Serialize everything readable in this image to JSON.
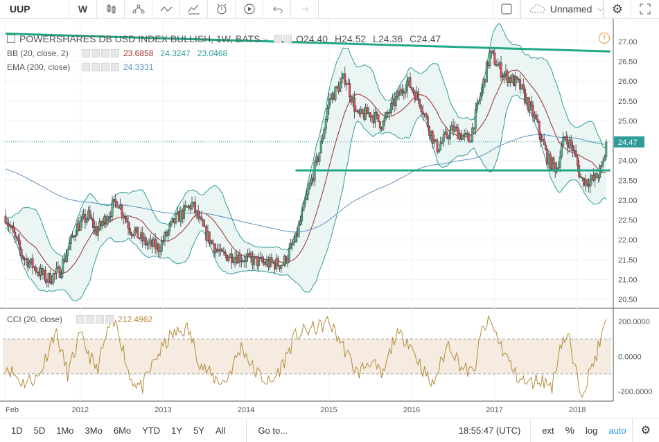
{
  "toolbar": {
    "symbol": "UUP",
    "interval": "W",
    "layout_name": "Unnamed",
    "icons": [
      "bar-style-icon",
      "indicators-icon",
      "compare-icon",
      "templates-icon",
      "alert-icon",
      "replay-icon",
      "undo-icon",
      "redo-icon",
      "checkbox-icon",
      "cloud-icon",
      "settings-icon",
      "fullscreen-icon"
    ]
  },
  "legend": {
    "title": "POWERSHARES DB USD INDEX BULLISH, 1W, BATS",
    "ohlc": {
      "o": "O24.40",
      "h": "H24.52",
      "l": "L24.36",
      "c": "C24.47"
    },
    "bb": {
      "label": "BB (20, close, 2)",
      "v1": "23.6858",
      "v2": "24.3247",
      "v3": "23.0468"
    },
    "ema": {
      "label": "EMA (200, close)",
      "v1": "24.3331"
    },
    "cci": {
      "label": "CCI (20, close)",
      "v1": "212.4962"
    }
  },
  "colors": {
    "up": "#53b987",
    "down": "#eb4d5c",
    "bb": "#2e9c98",
    "ema": "#5d8fbf",
    "sma": "#9c2b2b",
    "cci": "#b38b3a",
    "trend": "#1ea886",
    "band_fill": "#eaf5f4",
    "cci_band": "#f5ebe0"
  },
  "chart_data": {
    "type": "candlestick",
    "price_axis": {
      "min": 20.5,
      "max": 27.0,
      "ticks": [
        "27.00",
        "26.50",
        "26.00",
        "25.50",
        "25.00",
        "24.50",
        "24.00",
        "23.50",
        "23.00",
        "22.50",
        "22.00",
        "21.50",
        "21.00",
        "20.50"
      ],
      "last": "24.47"
    },
    "cci_axis": {
      "ticks": [
        "200.0000",
        "0.0000",
        "-200.0000"
      ],
      "band": [
        -100,
        100
      ]
    },
    "time_axis": {
      "start": 2011.1,
      "end": 2018.36,
      "ticks": [
        {
          "t": 2011.1,
          "label": "Feb"
        },
        {
          "t": 2012,
          "label": "2012"
        },
        {
          "t": 2013,
          "label": "2013"
        },
        {
          "t": 2014,
          "label": "2014"
        },
        {
          "t": 2015,
          "label": "2015"
        },
        {
          "t": 2016,
          "label": "2016"
        },
        {
          "t": 2017,
          "label": "2017"
        },
        {
          "t": 2018,
          "label": "2018"
        }
      ]
    },
    "close_keypoints": [
      [
        2011.1,
        22.6
      ],
      [
        2011.3,
        21.6
      ],
      [
        2011.45,
        21.3
      ],
      [
        2011.6,
        21.0
      ],
      [
        2011.75,
        21.2
      ],
      [
        2011.95,
        22.3
      ],
      [
        2012.1,
        22.6
      ],
      [
        2012.2,
        22.2
      ],
      [
        2012.45,
        23.0
      ],
      [
        2012.6,
        22.3
      ],
      [
        2012.8,
        21.9
      ],
      [
        2012.95,
        21.8
      ],
      [
        2013.15,
        22.5
      ],
      [
        2013.35,
        22.9
      ],
      [
        2013.5,
        22.2
      ],
      [
        2013.7,
        21.6
      ],
      [
        2013.85,
        21.6
      ],
      [
        2014.05,
        21.5
      ],
      [
        2014.25,
        21.4
      ],
      [
        2014.45,
        21.4
      ],
      [
        2014.6,
        22.0
      ],
      [
        2014.75,
        23.2
      ],
      [
        2014.9,
        24.3
      ],
      [
        2015.0,
        25.5
      ],
      [
        2015.2,
        26.1
      ],
      [
        2015.35,
        25.1
      ],
      [
        2015.5,
        25.2
      ],
      [
        2015.65,
        24.9
      ],
      [
        2015.8,
        25.5
      ],
      [
        2015.95,
        26.0
      ],
      [
        2016.1,
        25.5
      ],
      [
        2016.3,
        24.3
      ],
      [
        2016.5,
        24.8
      ],
      [
        2016.7,
        24.5
      ],
      [
        2016.85,
        25.8
      ],
      [
        2016.95,
        26.7
      ],
      [
        2017.1,
        26.2
      ],
      [
        2017.3,
        25.9
      ],
      [
        2017.5,
        25.0
      ],
      [
        2017.65,
        24.0
      ],
      [
        2017.75,
        23.8
      ],
      [
        2017.85,
        24.6
      ],
      [
        2017.95,
        24.3
      ],
      [
        2018.05,
        23.5
      ],
      [
        2018.2,
        23.5
      ],
      [
        2018.3,
        23.8
      ],
      [
        2018.36,
        24.47
      ]
    ],
    "trendlines": [
      {
        "t1": 2011.1,
        "p1": 27.2,
        "t2": 2018.4,
        "p2": 26.75
      },
      {
        "t1": 2014.6,
        "p1": 23.75,
        "t2": 2018.4,
        "p2": 23.75
      }
    ],
    "cci_keypoints": [
      [
        2011.1,
        -50
      ],
      [
        2011.3,
        -150
      ],
      [
        2011.5,
        -120
      ],
      [
        2011.7,
        150
      ],
      [
        2011.85,
        -100
      ],
      [
        2012.0,
        120
      ],
      [
        2012.2,
        -80
      ],
      [
        2012.35,
        170
      ],
      [
        2012.45,
        180
      ],
      [
        2012.6,
        -120
      ],
      [
        2012.75,
        -180
      ],
      [
        2012.9,
        -20
      ],
      [
        2013.1,
        120
      ],
      [
        2013.3,
        160
      ],
      [
        2013.45,
        -40
      ],
      [
        2013.6,
        -120
      ],
      [
        2013.75,
        -150
      ],
      [
        2013.95,
        60
      ],
      [
        2014.1,
        -80
      ],
      [
        2014.3,
        -160
      ],
      [
        2014.45,
        -40
      ],
      [
        2014.6,
        120
      ],
      [
        2014.75,
        150
      ],
      [
        2014.9,
        170
      ],
      [
        2015.0,
        200
      ],
      [
        2015.15,
        80
      ],
      [
        2015.35,
        -100
      ],
      [
        2015.5,
        -20
      ],
      [
        2015.65,
        -120
      ],
      [
        2015.8,
        120
      ],
      [
        2015.95,
        100
      ],
      [
        2016.1,
        -40
      ],
      [
        2016.25,
        -170
      ],
      [
        2016.45,
        80
      ],
      [
        2016.6,
        -60
      ],
      [
        2016.75,
        -100
      ],
      [
        2016.85,
        150
      ],
      [
        2016.95,
        200
      ],
      [
        2017.1,
        40
      ],
      [
        2017.25,
        -100
      ],
      [
        2017.4,
        -160
      ],
      [
        2017.55,
        -130
      ],
      [
        2017.7,
        -170
      ],
      [
        2017.8,
        80
      ],
      [
        2017.9,
        120
      ],
      [
        2017.95,
        -40
      ],
      [
        2018.05,
        -200
      ],
      [
        2018.15,
        -100
      ],
      [
        2018.25,
        40
      ],
      [
        2018.36,
        212
      ]
    ]
  },
  "bottombar": {
    "ranges": [
      "1D",
      "5D",
      "1Mo",
      "3Mo",
      "6Mo",
      "YTD",
      "1Y",
      "5Y",
      "All"
    ],
    "goto": "Go to...",
    "time": "18:55:47 (UTC)",
    "ext": "ext",
    "pct": "%",
    "log": "log",
    "auto": "auto"
  }
}
